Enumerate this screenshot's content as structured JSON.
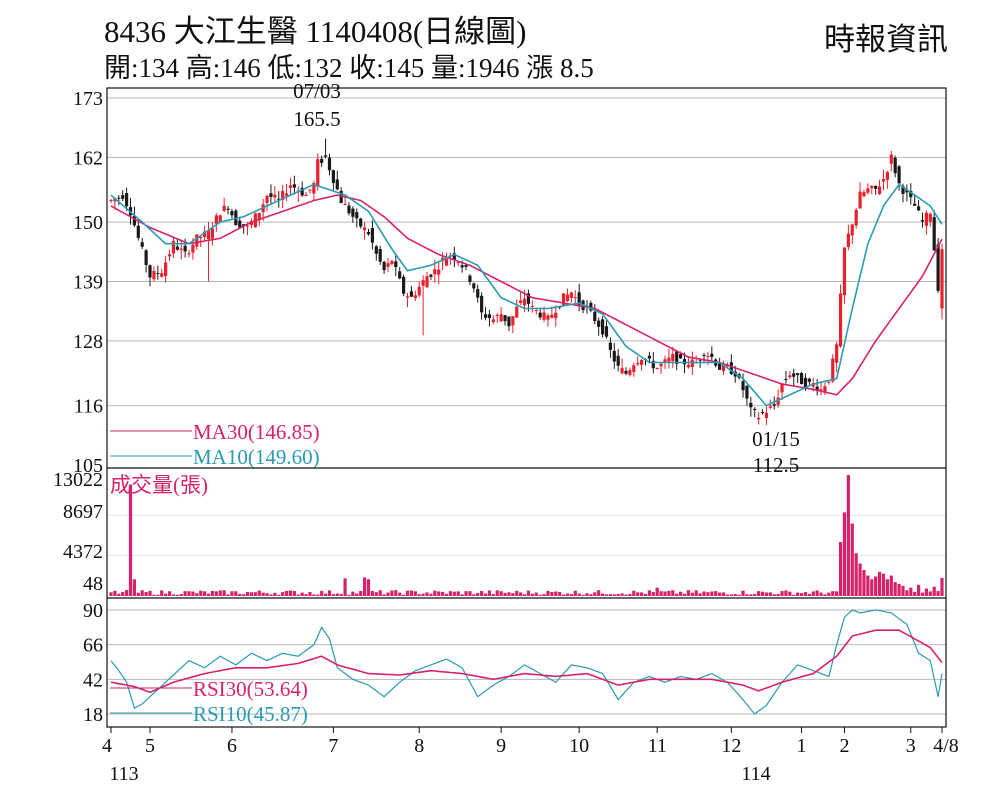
{
  "header": {
    "title": "8436  大江生醫 1140408(日線圖)",
    "source": "時報資訊",
    "stats": "開:134 高:146 低:132 收:145 量:1946 漲 8.5"
  },
  "colors": {
    "up": "#e8212c",
    "down": "#1a1a1a",
    "ma30": "#d6226b",
    "ma10": "#2a9bb5",
    "volume": "#d6226b",
    "rsi30": "#d6226b",
    "rsi10": "#2a9bb5",
    "grid": "#b8b8b8"
  },
  "chart_data": [
    {
      "type": "candlestick",
      "panel": "price",
      "y_ticks": [
        105,
        116,
        128,
        139,
        150,
        162,
        173
      ],
      "ylim": [
        105,
        173
      ],
      "x_tick_labels": [
        "4",
        "5",
        "6",
        "7",
        "8",
        "9",
        "10",
        "11",
        "12",
        "1",
        "2",
        "3",
        "4/8"
      ],
      "x_year_labels": {
        "first": "113",
        "second": "114"
      },
      "annotations": {
        "high": {
          "date": "07/03",
          "value": "165.5"
        },
        "low": {
          "date": "01/15",
          "value": "112.5"
        }
      },
      "legend": {
        "ma30": "MA30(146.85)",
        "ma10": "MA10(149.60)"
      },
      "close_path": [
        [
          0,
          154
        ],
        [
          3,
          155
        ],
        [
          5,
          152
        ],
        [
          7,
          147
        ],
        [
          10,
          140
        ],
        [
          13,
          141
        ],
        [
          16,
          146
        ],
        [
          19,
          144
        ],
        [
          22,
          147
        ],
        [
          25,
          148
        ],
        [
          28,
          152
        ],
        [
          30,
          153
        ],
        [
          32,
          150
        ],
        [
          35,
          149
        ],
        [
          38,
          152
        ],
        [
          40,
          155
        ],
        [
          43,
          154
        ],
        [
          46,
          157
        ],
        [
          48,
          156
        ],
        [
          50,
          155
        ],
        [
          52,
          157
        ],
        [
          53,
          161
        ],
        [
          55,
          162
        ],
        [
          57,
          158
        ],
        [
          59,
          154
        ],
        [
          61,
          152
        ],
        [
          63,
          150
        ],
        [
          66,
          148
        ],
        [
          68,
          144
        ],
        [
          70,
          141
        ],
        [
          72,
          143
        ],
        [
          75,
          137
        ],
        [
          77,
          136
        ],
        [
          79,
          138
        ],
        [
          81,
          140
        ],
        [
          83,
          141
        ],
        [
          85,
          143
        ],
        [
          87,
          144
        ],
        [
          89,
          143
        ],
        [
          91,
          141
        ],
        [
          93,
          138
        ],
        [
          95,
          133
        ],
        [
          98,
          132
        ],
        [
          100,
          133
        ],
        [
          102,
          131
        ],
        [
          104,
          134
        ],
        [
          106,
          136
        ],
        [
          108,
          134
        ],
        [
          110,
          133
        ],
        [
          112,
          132
        ],
        [
          114,
          134
        ],
        [
          116,
          136
        ],
        [
          118,
          137
        ],
        [
          120,
          135
        ],
        [
          122,
          134
        ],
        [
          124,
          132
        ],
        [
          126,
          130
        ],
        [
          128,
          126
        ],
        [
          130,
          123
        ],
        [
          132,
          122
        ],
        [
          134,
          124
        ],
        [
          136,
          125
        ],
        [
          138,
          124
        ],
        [
          140,
          123
        ],
        [
          142,
          124
        ],
        [
          144,
          125
        ],
        [
          146,
          124
        ],
        [
          148,
          124
        ],
        [
          150,
          124
        ],
        [
          152,
          126
        ],
        [
          154,
          125
        ],
        [
          156,
          123
        ],
        [
          158,
          123
        ],
        [
          160,
          122
        ],
        [
          162,
          119
        ],
        [
          164,
          115
        ],
        [
          166,
          114
        ],
        [
          168,
          115
        ],
        [
          170,
          116
        ],
        [
          172,
          120
        ],
        [
          174,
          122
        ],
        [
          176,
          121
        ],
        [
          178,
          120
        ],
        [
          180,
          120
        ],
        [
          182,
          119
        ],
        [
          184,
          121
        ],
        [
          186,
          127
        ],
        [
          188,
          145
        ],
        [
          190,
          150
        ],
        [
          192,
          155
        ],
        [
          194,
          156
        ],
        [
          196,
          156
        ],
        [
          198,
          158
        ],
        [
          200,
          162
        ],
        [
          202,
          157
        ],
        [
          204,
          155
        ],
        [
          206,
          153
        ],
        [
          208,
          150
        ],
        [
          210,
          152
        ],
        [
          212,
          138
        ],
        [
          213,
          145
        ]
      ],
      "ma10": [
        [
          0,
          155
        ],
        [
          8,
          150
        ],
        [
          14,
          146
        ],
        [
          20,
          146
        ],
        [
          28,
          150
        ],
        [
          34,
          151
        ],
        [
          40,
          153
        ],
        [
          46,
          155
        ],
        [
          52,
          157
        ],
        [
          56,
          156
        ],
        [
          60,
          155
        ],
        [
          66,
          152
        ],
        [
          72,
          145
        ],
        [
          76,
          141
        ],
        [
          82,
          142
        ],
        [
          88,
          144
        ],
        [
          94,
          142
        ],
        [
          100,
          136
        ],
        [
          106,
          134
        ],
        [
          112,
          134
        ],
        [
          120,
          135
        ],
        [
          126,
          133
        ],
        [
          132,
          127
        ],
        [
          138,
          124
        ],
        [
          144,
          124
        ],
        [
          150,
          124
        ],
        [
          156,
          124
        ],
        [
          162,
          121
        ],
        [
          168,
          116
        ],
        [
          174,
          118
        ],
        [
          180,
          120
        ],
        [
          186,
          121
        ],
        [
          190,
          134
        ],
        [
          194,
          146
        ],
        [
          198,
          153
        ],
        [
          202,
          157
        ],
        [
          206,
          155
        ],
        [
          210,
          153
        ],
        [
          213,
          149.6
        ]
      ],
      "ma30": [
        [
          0,
          153
        ],
        [
          10,
          149
        ],
        [
          20,
          146
        ],
        [
          28,
          147
        ],
        [
          36,
          150
        ],
        [
          44,
          152
        ],
        [
          52,
          154
        ],
        [
          58,
          155
        ],
        [
          64,
          154
        ],
        [
          70,
          151
        ],
        [
          76,
          147
        ],
        [
          84,
          144
        ],
        [
          92,
          142
        ],
        [
          100,
          139
        ],
        [
          108,
          136
        ],
        [
          116,
          135
        ],
        [
          124,
          134
        ],
        [
          132,
          131
        ],
        [
          140,
          128
        ],
        [
          148,
          125
        ],
        [
          156,
          124
        ],
        [
          164,
          122
        ],
        [
          172,
          120
        ],
        [
          180,
          119
        ],
        [
          186,
          118
        ],
        [
          190,
          121
        ],
        [
          196,
          128
        ],
        [
          202,
          134
        ],
        [
          208,
          140
        ],
        [
          213,
          146.85
        ]
      ]
    },
    {
      "type": "bar",
      "panel": "volume",
      "title": "成交量(張)",
      "y_ticks": [
        48,
        4372,
        8697,
        13022
      ],
      "ylim": [
        0,
        13500
      ],
      "spikes": [
        [
          5,
          12000
        ],
        [
          6,
          1800
        ],
        [
          60,
          1900
        ],
        [
          65,
          2000
        ],
        [
          66,
          1800
        ],
        [
          140,
          900
        ],
        [
          186,
          500
        ],
        [
          187,
          5800
        ],
        [
          188,
          9000
        ],
        [
          189,
          13022
        ],
        [
          190,
          7800
        ],
        [
          191,
          4600
        ],
        [
          192,
          3500
        ],
        [
          193,
          2800
        ],
        [
          194,
          2200
        ],
        [
          195,
          1800
        ],
        [
          196,
          2100
        ],
        [
          197,
          2600
        ],
        [
          198,
          2400
        ],
        [
          199,
          1800
        ],
        [
          200,
          2200
        ],
        [
          201,
          1500
        ],
        [
          202,
          1300
        ],
        [
          203,
          1100
        ],
        [
          205,
          900
        ],
        [
          207,
          1200
        ],
        [
          209,
          800
        ],
        [
          211,
          1000
        ],
        [
          213,
          1946
        ]
      ]
    },
    {
      "type": "line",
      "panel": "rsi",
      "y_ticks": [
        18,
        42,
        66,
        90
      ],
      "ylim": [
        10,
        95
      ],
      "legend": {
        "rsi30": "RSI30(53.64)",
        "rsi10": "RSI10(45.87)"
      },
      "series": [
        {
          "name": "RSI10",
          "values": [
            [
              0,
              55
            ],
            [
              2,
              48
            ],
            [
              4,
              40
            ],
            [
              6,
              22
            ],
            [
              8,
              25
            ],
            [
              10,
              30
            ],
            [
              12,
              35
            ],
            [
              16,
              45
            ],
            [
              20,
              55
            ],
            [
              24,
              50
            ],
            [
              28,
              58
            ],
            [
              32,
              52
            ],
            [
              36,
              60
            ],
            [
              40,
              55
            ],
            [
              44,
              60
            ],
            [
              48,
              58
            ],
            [
              52,
              66
            ],
            [
              54,
              78
            ],
            [
              56,
              70
            ],
            [
              58,
              50
            ],
            [
              62,
              42
            ],
            [
              66,
              38
            ],
            [
              70,
              30
            ],
            [
              74,
              40
            ],
            [
              78,
              48
            ],
            [
              82,
              52
            ],
            [
              86,
              56
            ],
            [
              90,
              50
            ],
            [
              94,
              30
            ],
            [
              98,
              38
            ],
            [
              102,
              44
            ],
            [
              106,
              52
            ],
            [
              110,
              46
            ],
            [
              114,
              40
            ],
            [
              118,
              52
            ],
            [
              122,
              50
            ],
            [
              126,
              46
            ],
            [
              130,
              28
            ],
            [
              134,
              40
            ],
            [
              138,
              44
            ],
            [
              142,
              40
            ],
            [
              146,
              44
            ],
            [
              150,
              42
            ],
            [
              154,
              46
            ],
            [
              158,
              40
            ],
            [
              162,
              28
            ],
            [
              165,
              18
            ],
            [
              168,
              24
            ],
            [
              172,
              40
            ],
            [
              176,
              52
            ],
            [
              180,
              48
            ],
            [
              184,
              44
            ],
            [
              186,
              66
            ],
            [
              188,
              85
            ],
            [
              190,
              90
            ],
            [
              192,
              88
            ],
            [
              196,
              90
            ],
            [
              200,
              88
            ],
            [
              204,
              80
            ],
            [
              207,
              60
            ],
            [
              210,
              55
            ],
            [
              212,
              30
            ],
            [
              213,
              45.87
            ]
          ]
        },
        {
          "name": "RSI30",
          "values": [
            [
              0,
              40
            ],
            [
              6,
              37
            ],
            [
              10,
              33
            ],
            [
              16,
              40
            ],
            [
              24,
              46
            ],
            [
              32,
              50
            ],
            [
              40,
              50
            ],
            [
              48,
              53
            ],
            [
              54,
              58
            ],
            [
              58,
              52
            ],
            [
              66,
              46
            ],
            [
              74,
              45
            ],
            [
              82,
              48
            ],
            [
              90,
              46
            ],
            [
              98,
              42
            ],
            [
              106,
              46
            ],
            [
              114,
              44
            ],
            [
              122,
              46
            ],
            [
              130,
              38
            ],
            [
              138,
              42
            ],
            [
              146,
              42
            ],
            [
              154,
              42
            ],
            [
              162,
              38
            ],
            [
              166,
              34
            ],
            [
              172,
              40
            ],
            [
              180,
              46
            ],
            [
              186,
              58
            ],
            [
              190,
              72
            ],
            [
              196,
              76
            ],
            [
              202,
              76
            ],
            [
              206,
              70
            ],
            [
              210,
              64
            ],
            [
              213,
              53.64
            ]
          ]
        }
      ]
    }
  ]
}
